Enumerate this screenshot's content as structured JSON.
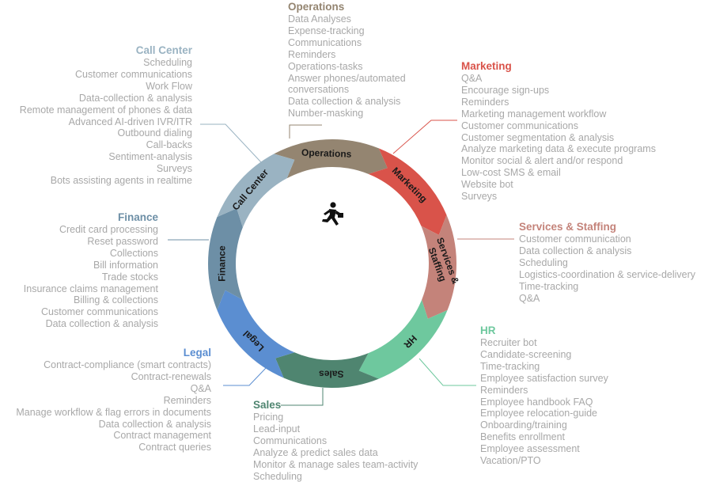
{
  "colors": {
    "operations": "#948571",
    "marketing": "#d9534a",
    "services": "#c4837a",
    "hr": "#6ec89e",
    "sales": "#4f8570",
    "legal": "#5b8ed1",
    "finance": "#6d8fa6",
    "callcenter": "#9ab3c2",
    "item_text": "#a8a8a8"
  },
  "center_icon": "running-person-icon",
  "segments": {
    "operations": "Operations",
    "marketing": "Marketing",
    "services_line1": "Services &",
    "services_line2": "Staffing",
    "hr": "HR",
    "sales": "Sales",
    "legal": "Legal",
    "finance": "Finance",
    "callcenter": "Call Center"
  },
  "groups": {
    "operations": {
      "title": "Operations",
      "items": [
        "Data Analyses",
        "Expense-tracking",
        "Communications",
        "Reminders",
        "Operations-tasks",
        "Answer phones/automated",
        "conversations",
        "Data collection & analysis",
        "Number-masking"
      ]
    },
    "marketing": {
      "title": "Marketing",
      "items": [
        "Q&A",
        "Encourage sign-ups",
        "Reminders",
        "Marketing management workflow",
        "Customer communications",
        "Customer segmentation & analysis",
        "Analyze marketing data & execute programs",
        "Monitor social & alert and/or respond",
        "Low-cost SMS & email",
        "Website bot",
        "Surveys"
      ]
    },
    "services": {
      "title": "Services & Staffing",
      "items": [
        "Customer communication",
        "Data collection & analysis",
        "Scheduling",
        "Logistics-coordination & service-delivery",
        "Time-tracking",
        "Q&A"
      ]
    },
    "hr": {
      "title": "HR",
      "items": [
        "Recruiter bot",
        "Candidate-screening",
        "Time-tracking",
        "Employee satisfaction survey",
        "Reminders",
        "Employee handbook FAQ",
        "Employee relocation-guide",
        "Onboarding/training",
        "Benefits enrollment",
        "Employee assessment",
        "Vacation/PTO"
      ]
    },
    "sales": {
      "title": "Sales",
      "items": [
        "Pricing",
        "Lead-input",
        "Communications",
        "Analyze & predict sales data",
        "Monitor & manage sales team-activity",
        "Scheduling"
      ]
    },
    "legal": {
      "title": "Legal",
      "items": [
        "Contract-compliance (smart contracts)",
        "Contract-renewals",
        "Q&A",
        "Reminders",
        "Manage workflow & flag errors in documents",
        "Data collection & analysis",
        "Contract management",
        "Contract queries"
      ]
    },
    "finance": {
      "title": "Finance",
      "items": [
        "Credit card processing",
        "Reset password",
        "Collections",
        "Bill information",
        "Trade stocks",
        "Insurance claims management",
        "Billing & collections",
        "Customer communications",
        "Data collection & analysis"
      ]
    },
    "callcenter": {
      "title": "Call Center",
      "items": [
        "Scheduling",
        "Customer communications",
        "Work Flow",
        "Data-collection & analysis",
        "Remote management of phones & data",
        "Advanced AI-driven IVR/ITR",
        "Outbound dialing",
        "Call-backs",
        "Sentiment-analysis",
        "Surveys",
        "Bots assisting agents in realtime"
      ]
    }
  }
}
